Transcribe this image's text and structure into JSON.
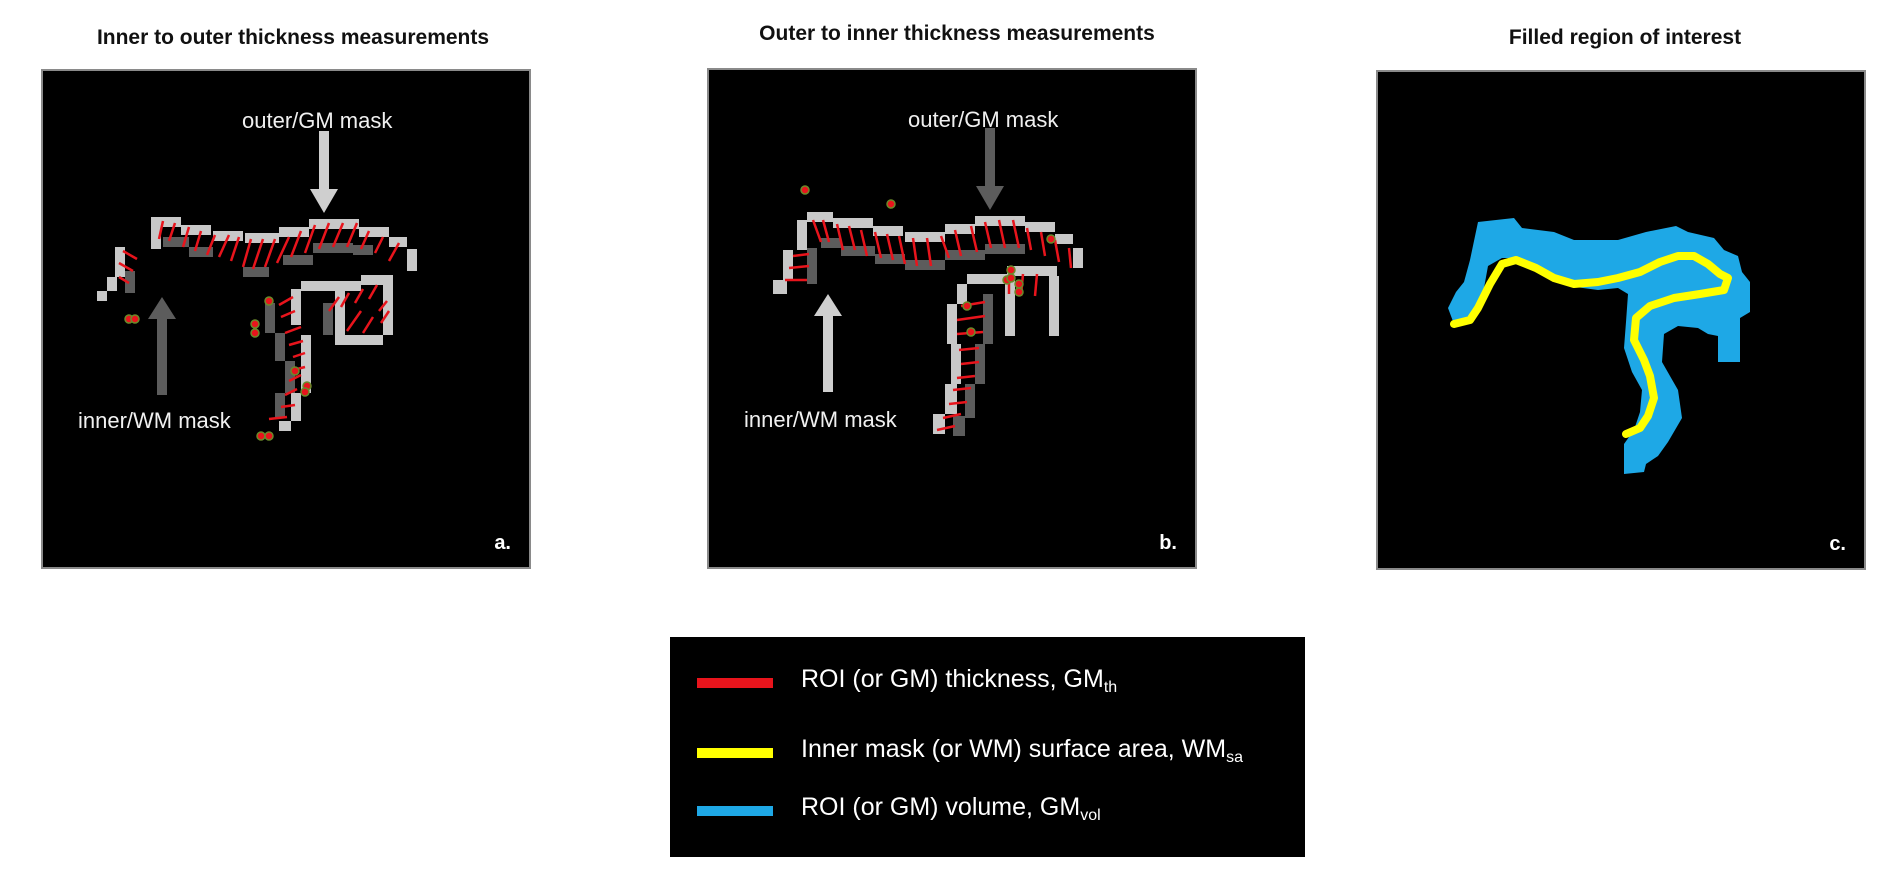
{
  "panels": [
    {
      "title": "Inner to outer thickness measurements",
      "letter": "a.",
      "outer_label": "outer/GM mask",
      "inner_label": "inner/WM mask"
    },
    {
      "title": "Outer to inner thickness measurements",
      "letter": "b.",
      "outer_label": "outer/GM mask",
      "inner_label": "inner/WM mask"
    },
    {
      "title": "Filled region of interest",
      "letter": "c."
    }
  ],
  "legend": {
    "items": [
      {
        "text": "ROI (or GM) thickness, GM",
        "sub": "th",
        "color": "#e8141c"
      },
      {
        "text": "Inner mask (or WM) surface area, WM",
        "sub": "sa",
        "color": "#ffff00"
      },
      {
        "text": "ROI (or GM) volume, GM",
        "sub": "vol",
        "color": "#1ea8e6"
      }
    ]
  },
  "colors": {
    "thickness": "#e8141c",
    "surface": "#ffff00",
    "volume": "#1ea8e6",
    "outer_mask": "#c8c8c8",
    "inner_mask": "#5c5c5c"
  }
}
